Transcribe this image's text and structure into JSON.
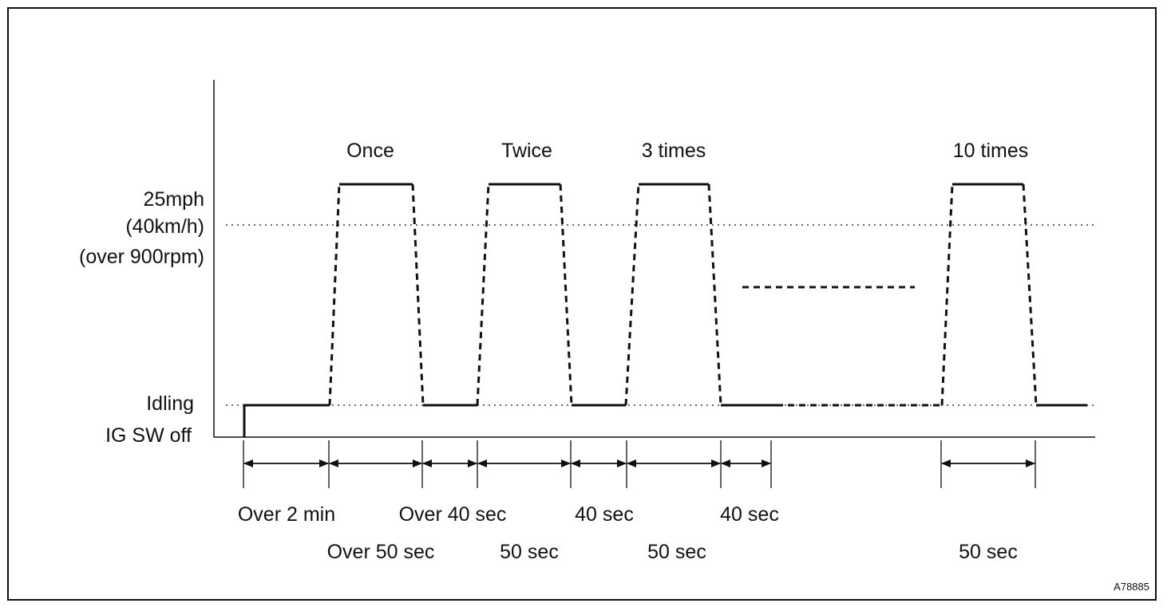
{
  "diagram": {
    "y_levels": {
      "speed": "25mph",
      "speed_metric": "(40km/h)",
      "rpm": "(over 900rpm)",
      "idling": "Idling",
      "ig_off": "IG SW off"
    },
    "cycle_labels": [
      "Once",
      "Twice",
      "3 times",
      "10 times"
    ],
    "interval_labels_row1": [
      "Over 2 min",
      "Over 40 sec",
      "40 sec",
      "40 sec"
    ],
    "interval_labels_row2": [
      "Over 50 sec",
      "50 sec",
      "50 sec",
      "50 sec"
    ],
    "figure_id": "A78885"
  }
}
